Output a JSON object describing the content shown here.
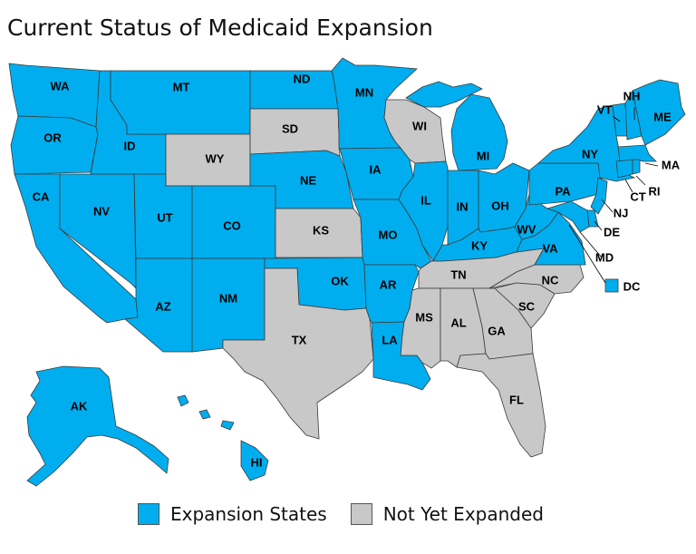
{
  "title": "Current Status of Medicaid Expansion",
  "colors": {
    "expanded": "#00aeef",
    "not_expanded": "#c8c8c8"
  },
  "legend": [
    {
      "status": "expanded",
      "label": "Expansion States"
    },
    {
      "status": "not_expanded",
      "label": "Not Yet Expanded"
    }
  ],
  "states": {
    "WA": "expanded",
    "OR": "expanded",
    "CA": "expanded",
    "ID": "expanded",
    "NV": "expanded",
    "MT": "expanded",
    "WY": "not_expanded",
    "UT": "expanded",
    "CO": "expanded",
    "AZ": "expanded",
    "NM": "expanded",
    "ND": "expanded",
    "SD": "not_expanded",
    "NE": "expanded",
    "KS": "not_expanded",
    "OK": "expanded",
    "TX": "not_expanded",
    "MN": "expanded",
    "IA": "expanded",
    "MO": "expanded",
    "AR": "expanded",
    "LA": "expanded",
    "WI": "not_expanded",
    "IL": "expanded",
    "MI": "expanded",
    "IN": "expanded",
    "OH": "expanded",
    "KY": "expanded",
    "TN": "not_expanded",
    "MS": "not_expanded",
    "AL": "not_expanded",
    "GA": "not_expanded",
    "FL": "not_expanded",
    "SC": "not_expanded",
    "NC": "not_expanded",
    "VA": "expanded",
    "WV": "expanded",
    "PA": "expanded",
    "NY": "expanded",
    "VT": "expanded",
    "NH": "expanded",
    "ME": "expanded",
    "MA": "expanded",
    "CT": "expanded",
    "RI": "expanded",
    "NJ": "expanded",
    "DE": "expanded",
    "MD": "expanded",
    "DC": "expanded",
    "AK": "expanded",
    "HI": "expanded"
  }
}
